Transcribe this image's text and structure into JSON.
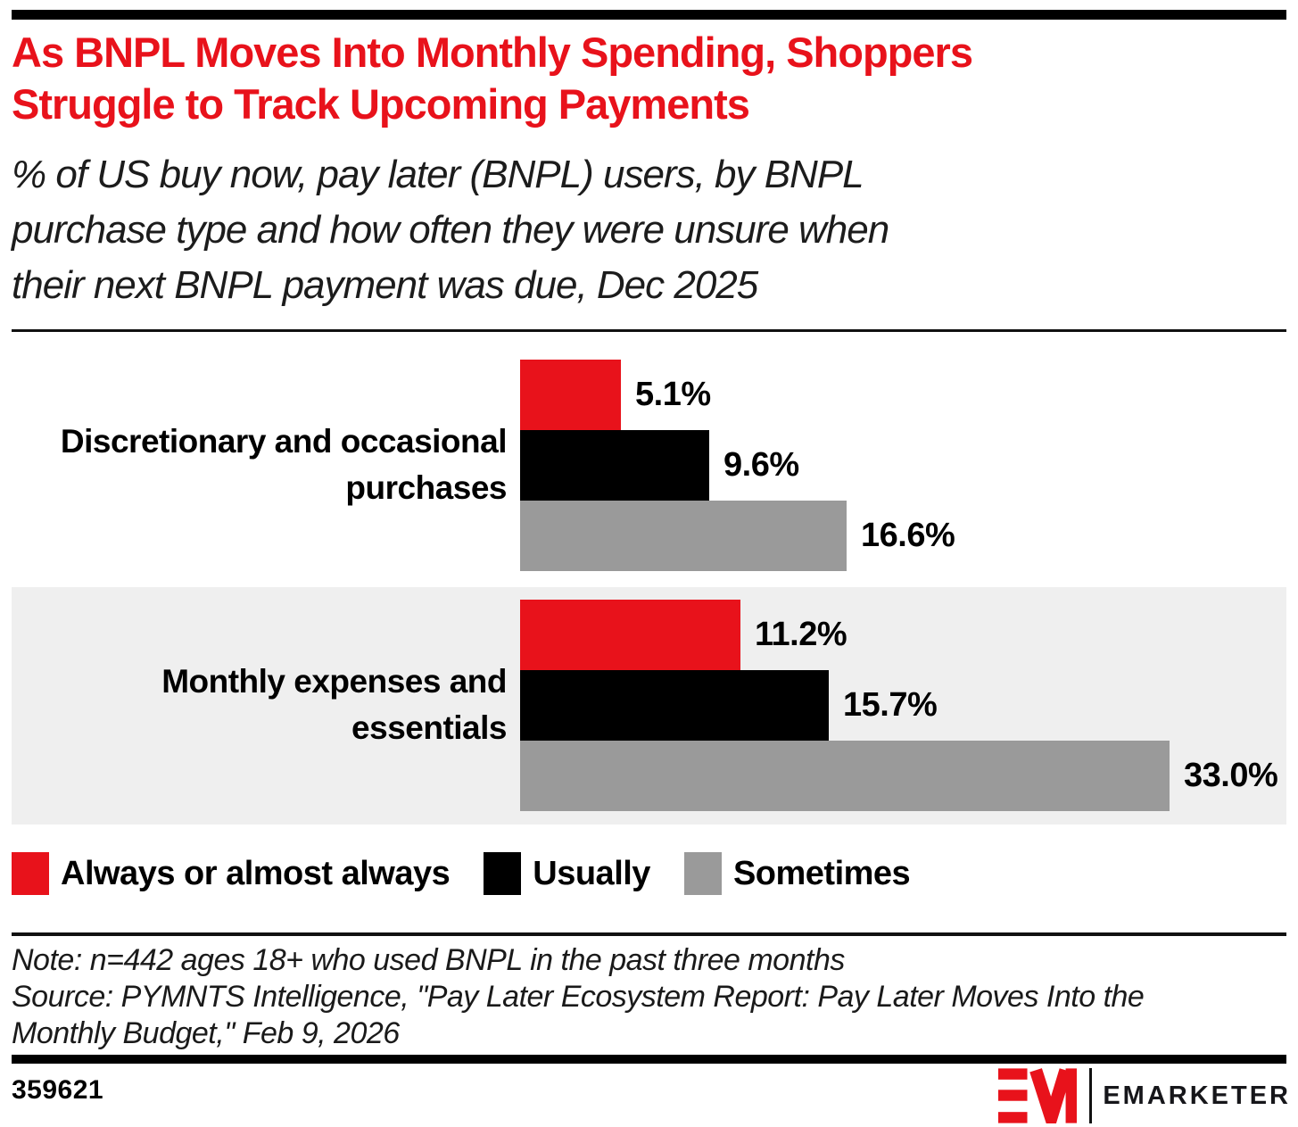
{
  "colors": {
    "accent_red": "#e8121b",
    "series_black": "#000000",
    "series_gray": "#9a9a9a",
    "band_background": "#efefef",
    "rule_black": "#111111"
  },
  "header": {
    "title_lines": [
      "As BNPL Moves Into Monthly Spending, Shoppers",
      "Struggle to Track Upcoming Payments"
    ],
    "subtitle_lines": [
      "% of US buy now, pay later (BNPL) users, by BNPL",
      "purchase type and how often they were unsure when",
      "their next BNPL payment was due, Dec 2025"
    ]
  },
  "chart_data": {
    "type": "bar",
    "orientation": "horizontal",
    "unit": "%",
    "title": "As BNPL Moves Into Monthly Spending, Shoppers Struggle to Track Upcoming Payments",
    "subtitle": "% of US buy now, pay later (BNPL) users, by BNPL purchase type and how often they were unsure when their next BNPL payment was due, Dec 2025",
    "categories": [
      "Discretionary and occasional purchases",
      "Monthly expenses and essentials"
    ],
    "category_label_lines": [
      [
        "Discretionary and occasional",
        "purchases"
      ],
      [
        "Monthly expenses and",
        "essentials"
      ]
    ],
    "series": [
      {
        "name": "Always or almost always",
        "color": "#e8121b",
        "values": [
          5.1,
          11.2
        ]
      },
      {
        "name": "Usually",
        "color": "#000000",
        "values": [
          9.6,
          15.7
        ]
      },
      {
        "name": "Sometimes",
        "color": "#9a9a9a",
        "values": [
          16.6,
          33.0
        ]
      }
    ],
    "value_labels": [
      [
        "5.1%",
        "9.6%",
        "16.6%"
      ],
      [
        "11.2%",
        "15.7%",
        "33.0%"
      ]
    ],
    "xlim": [
      0,
      39
    ],
    "grid": false,
    "legend_position": "bottom",
    "highlighted_band_category_index": 1
  },
  "legend": {
    "items": [
      {
        "label": "Always or almost always",
        "color": "#e8121b"
      },
      {
        "label": "Usually",
        "color": "#000000"
      },
      {
        "label": "Sometimes",
        "color": "#9a9a9a"
      }
    ]
  },
  "notes": {
    "lines": [
      "Note: n=442 ages 18+ who used BNPL in the past three months",
      "Source: PYMNTS Intelligence, \"Pay Later Ecosystem Report: Pay Later Moves Into the",
      "Monthly Budget,\" Feb 9, 2026"
    ]
  },
  "footer": {
    "chart_id": "359621",
    "brand_wordmark": "EMARKETER"
  }
}
